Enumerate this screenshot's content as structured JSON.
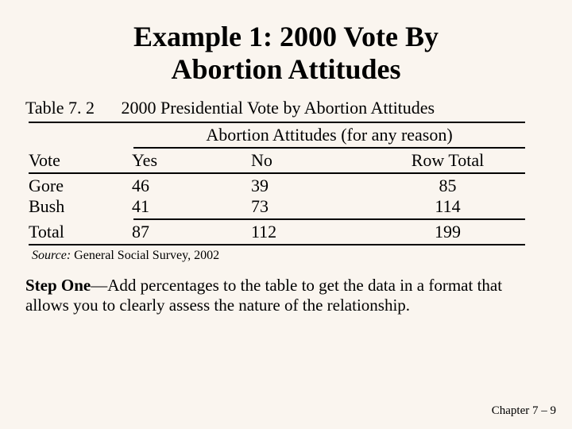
{
  "title_line1": "Example 1: 2000 Vote By",
  "title_line2": "Abortion Attitudes",
  "table_label": "Table 7. 2",
  "table_caption": "2000 Presidential Vote by Abortion Attitudes",
  "spanning_header": "Abortion Attitudes (for any reason)",
  "columns": {
    "vote": "Vote",
    "yes": "Yes",
    "no": "No",
    "row_total": "Row Total"
  },
  "rows": [
    {
      "label": "Gore",
      "yes": "46",
      "no": "39",
      "total": "85"
    },
    {
      "label": "Bush",
      "yes": "41",
      "no": "73",
      "total": "114"
    }
  ],
  "total_row": {
    "label": "Total",
    "yes": "87",
    "no": "112",
    "total": "199"
  },
  "source_label": "Source:",
  "source_text": " General Social Survey, 2002",
  "step_bold": "Step One",
  "step_text": "—Add percentages to the table to get the data in a format that allows you to clearly assess the nature of the relationship.",
  "footer": "Chapter 7 – 9",
  "colors": {
    "background": "#faf5ef",
    "text": "#000000",
    "rule": "#000000"
  },
  "typography": {
    "family": "Times New Roman",
    "title_size_pt": 36,
    "body_size_pt": 22,
    "source_size_pt": 16,
    "step_size_pt": 21,
    "footer_size_pt": 15
  }
}
